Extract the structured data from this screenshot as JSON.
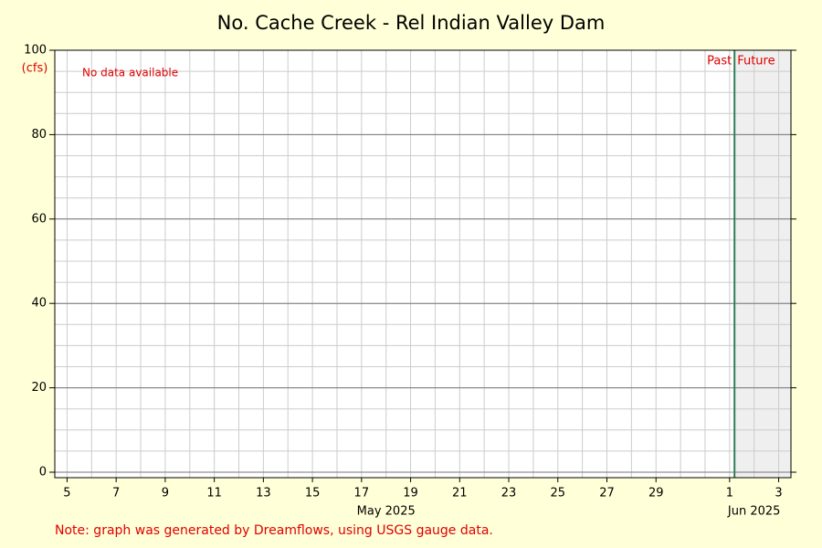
{
  "chart_data": {
    "type": "line",
    "title": "No. Cache Creek - Rel Indian Valley Dam",
    "y_unit": "(cfs)",
    "message": "No data available",
    "note": "Note: graph was generated by Dreamflows, using USGS gauge data.",
    "past_label": "Past",
    "future_label": "Future",
    "now": 32.2,
    "x": [],
    "values": [],
    "xlim": [
      4.5,
      34.5
    ],
    "xticks": [
      5,
      7,
      9,
      11,
      13,
      15,
      17,
      19,
      21,
      23,
      25,
      27,
      29,
      {
        "value": 32,
        "label": "1"
      },
      {
        "value": 34,
        "label": "3"
      }
    ],
    "month_labels": [
      {
        "value": 18,
        "label": "May 2025"
      },
      {
        "value": 33,
        "label": "Jun 2025"
      }
    ],
    "ylim": [
      -1.3,
      100
    ],
    "yticks": [
      0,
      20,
      40,
      60,
      80,
      100
    ],
    "yminor_step": 5,
    "grid": true,
    "future_color": "#efefef",
    "now_color": "#2e7d5b"
  }
}
